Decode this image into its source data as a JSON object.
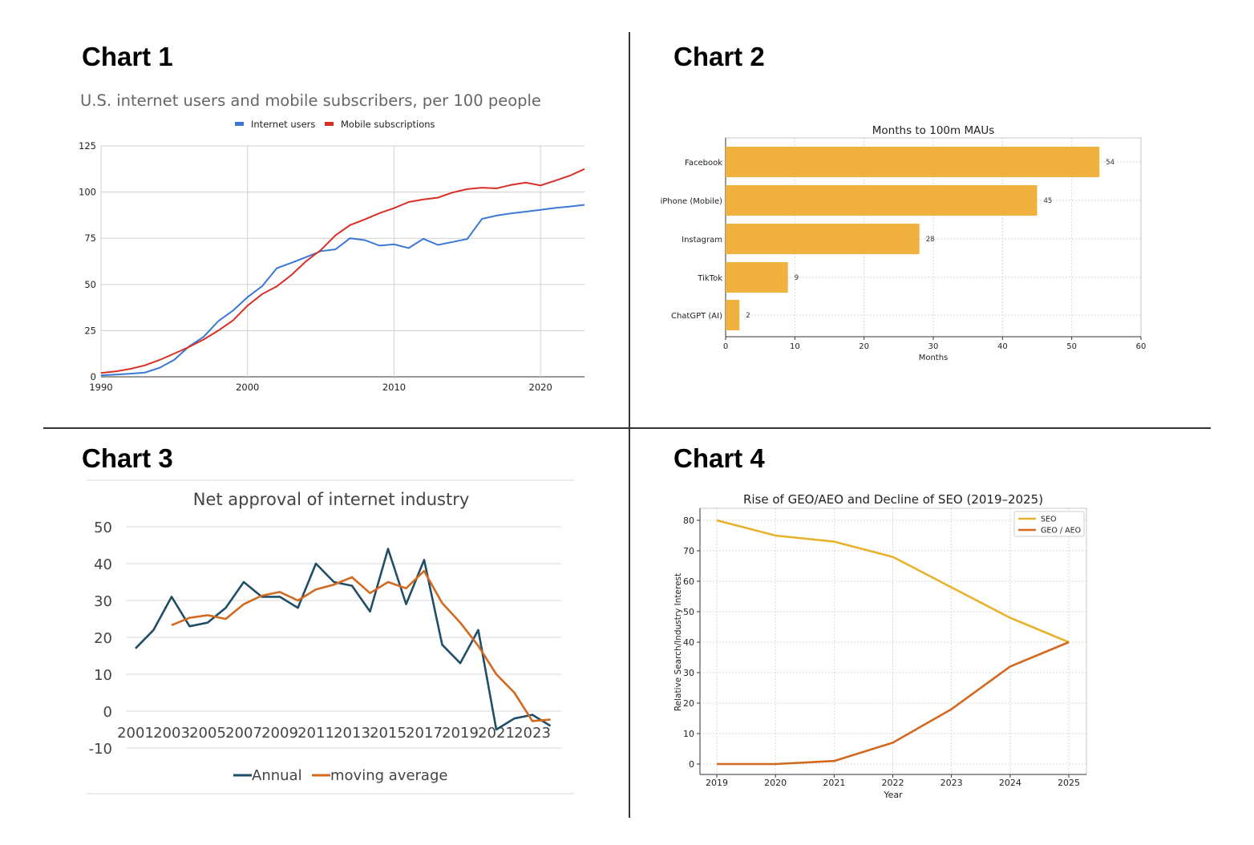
{
  "panels": [
    {
      "heading": "Chart 1"
    },
    {
      "heading": "Chart 2"
    },
    {
      "heading": "Chart 3"
    },
    {
      "heading": "Chart 4"
    }
  ],
  "chart_data": [
    {
      "type": "line",
      "title": "U.S. internet users and mobile subscribers, per 100 people",
      "xlabel": "",
      "ylabel": "",
      "xlim": [
        1990,
        2023
      ],
      "ylim": [
        0,
        125
      ],
      "xticks": [
        "1990",
        "2000",
        "2010",
        "2020"
      ],
      "yticks": [
        "0",
        "25",
        "50",
        "75",
        "100",
        "125"
      ],
      "grid": true,
      "legend": "top-center",
      "series": [
        {
          "name": "Internet users",
          "color": "#3b78d8",
          "x": [
            1990,
            1991,
            1992,
            1993,
            1994,
            1995,
            1996,
            1997,
            1998,
            1999,
            2000,
            2001,
            2002,
            2003,
            2004,
            2005,
            2006,
            2007,
            2008,
            2009,
            2010,
            2011,
            2012,
            2013,
            2014,
            2015,
            2016,
            2017,
            2018,
            2019,
            2020,
            2021,
            2022,
            2023
          ],
          "y": [
            0.8,
            1.2,
            1.7,
            2.3,
            4.9,
            9.2,
            16.4,
            21.6,
            30.1,
            35.8,
            43.1,
            49.1,
            58.8,
            61.7,
            64.8,
            68,
            69,
            75,
            74,
            71,
            71.7,
            69.7,
            74.7,
            71.4,
            73,
            74.6,
            85.5,
            87.3,
            88.5,
            89.4,
            90.4,
            91.4,
            92.2,
            93.1
          ]
        },
        {
          "name": "Mobile subscriptions",
          "color": "#d93025",
          "x": [
            1990,
            1991,
            1992,
            1993,
            1994,
            1995,
            1996,
            1997,
            1998,
            1999,
            2000,
            2001,
            2002,
            2003,
            2004,
            2005,
            2006,
            2007,
            2008,
            2009,
            2010,
            2011,
            2012,
            2013,
            2014,
            2015,
            2016,
            2017,
            2018,
            2019,
            2020,
            2021,
            2022,
            2023
          ],
          "y": [
            2.1,
            2.9,
            4.3,
            6.2,
            9.1,
            12.6,
            16.1,
            20.2,
            25,
            30.5,
            38.5,
            44.8,
            49,
            55.1,
            62.6,
            68.6,
            76.6,
            82.1,
            85.2,
            88.6,
            91.3,
            94.6,
            96,
            97,
            99.8,
            101.6,
            102.4,
            102,
            103.9,
            105.1,
            103.6,
            106.2,
            108.9,
            112.5
          ]
        }
      ]
    },
    {
      "type": "bar",
      "orientation": "horizontal",
      "title": "Months to 100m MAUs",
      "xlabel": "Months",
      "ylabel": "",
      "xlim": [
        0,
        60
      ],
      "xticks": [
        "0",
        "10",
        "20",
        "30",
        "40",
        "50",
        "60"
      ],
      "grid": true,
      "color": "#f0b13e",
      "categories": [
        "Facebook",
        "iPhone (Mobile)",
        "Instagram",
        "TikTok",
        "ChatGPT (AI)"
      ],
      "values": [
        54,
        45,
        28,
        9,
        2
      ],
      "data_labels": [
        "54",
        "45",
        "28",
        "9",
        "2"
      ]
    },
    {
      "type": "line",
      "title": "Net approval of internet industry",
      "xlabel": "",
      "ylabel": "",
      "xlim": [
        2001,
        2024
      ],
      "ylim": [
        -10,
        50
      ],
      "xticks": [
        "2001",
        "2003",
        "2005",
        "2007",
        "2009",
        "2011",
        "2013",
        "2015",
        "2017",
        "2019",
        "2021",
        "2023"
      ],
      "yticks": [
        "-10",
        "0",
        "10",
        "20",
        "30",
        "40",
        "50"
      ],
      "grid": true,
      "legend": "bottom-center",
      "series": [
        {
          "name": "Annual",
          "color": "#1f4e66",
          "x": [
            2001,
            2002,
            2003,
            2004,
            2005,
            2006,
            2007,
            2008,
            2009,
            2010,
            2011,
            2012,
            2013,
            2014,
            2015,
            2016,
            2017,
            2018,
            2019,
            2020,
            2021,
            2022,
            2023,
            2024
          ],
          "y": [
            17,
            22,
            31,
            23,
            24,
            28,
            35,
            31,
            31,
            28,
            40,
            35,
            34,
            27,
            44,
            29,
            41,
            18,
            13,
            22,
            -5,
            -2,
            -1,
            -4
          ]
        },
        {
          "name": "moving average",
          "color": "#d2691e",
          "x": [
            2003,
            2004,
            2005,
            2006,
            2007,
            2008,
            2009,
            2010,
            2011,
            2012,
            2013,
            2014,
            2015,
            2016,
            2017,
            2018,
            2019,
            2020,
            2021,
            2022,
            2023,
            2024
          ],
          "y": [
            23.3,
            25.3,
            26,
            25,
            29,
            31.3,
            32.3,
            30,
            33,
            34.3,
            36.3,
            32,
            35,
            33.3,
            38,
            29.3,
            24,
            17.7,
            10,
            5,
            -2.7,
            -2.3
          ]
        }
      ]
    },
    {
      "type": "line",
      "title": "Rise of GEO/AEO and Decline of SEO (2019–2025)",
      "xlabel": "Year",
      "ylabel": "Relative Search/Industry Interest",
      "xlim": [
        2019,
        2025
      ],
      "ylim": [
        0,
        80
      ],
      "xticks": [
        "2019",
        "2020",
        "2021",
        "2022",
        "2023",
        "2024",
        "2025"
      ],
      "yticks": [
        "0",
        "10",
        "20",
        "30",
        "40",
        "50",
        "60",
        "70",
        "80"
      ],
      "grid": true,
      "legend": "top-right",
      "series": [
        {
          "name": "SEO",
          "color": "#e8b22d",
          "x": [
            2019,
            2020,
            2021,
            2022,
            2023,
            2024,
            2025
          ],
          "y": [
            80,
            75,
            73,
            68,
            58,
            48,
            40
          ]
        },
        {
          "name": "GEO / AEO",
          "color": "#d2691e",
          "x": [
            2019,
            2020,
            2021,
            2022,
            2023,
            2024,
            2025
          ],
          "y": [
            0,
            0,
            1,
            7,
            18,
            32,
            40
          ]
        }
      ]
    }
  ]
}
